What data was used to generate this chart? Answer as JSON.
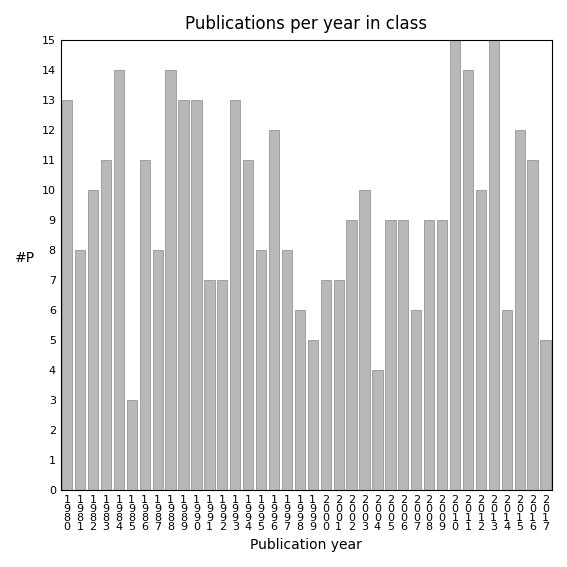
{
  "title": "Publications per year in class",
  "xlabel": "Publication year",
  "ylabel": "#P",
  "years": [
    "1980",
    "1981",
    "1982",
    "1983",
    "1984",
    "1985",
    "1986",
    "1987",
    "1988",
    "1989",
    "1990",
    "1991",
    "1992",
    "1993",
    "1994",
    "1995",
    "1996",
    "1997",
    "1998",
    "1999",
    "2000",
    "2001",
    "2002",
    "2003",
    "2004",
    "2005",
    "2006",
    "2007",
    "2008",
    "2009",
    "2010",
    "2011",
    "2012",
    "2013",
    "2014",
    "2015",
    "2016",
    "2017"
  ],
  "values": [
    13,
    8,
    10,
    11,
    14,
    3,
    11,
    8,
    14,
    13,
    13,
    7,
    7,
    13,
    11,
    8,
    12,
    8,
    6,
    5,
    7,
    7,
    9,
    10,
    4,
    9,
    9,
    6,
    9,
    9,
    15,
    14,
    10,
    15,
    6,
    12,
    11,
    5
  ],
  "bar_color": "#b8b8b8",
  "bar_edgecolor": "#888888",
  "ylim": [
    0,
    15
  ],
  "yticks": [
    0,
    1,
    2,
    3,
    4,
    5,
    6,
    7,
    8,
    9,
    10,
    11,
    12,
    13,
    14,
    15
  ],
  "background_color": "#ffffff",
  "title_fontsize": 12,
  "axis_label_fontsize": 10,
  "tick_fontsize": 8
}
